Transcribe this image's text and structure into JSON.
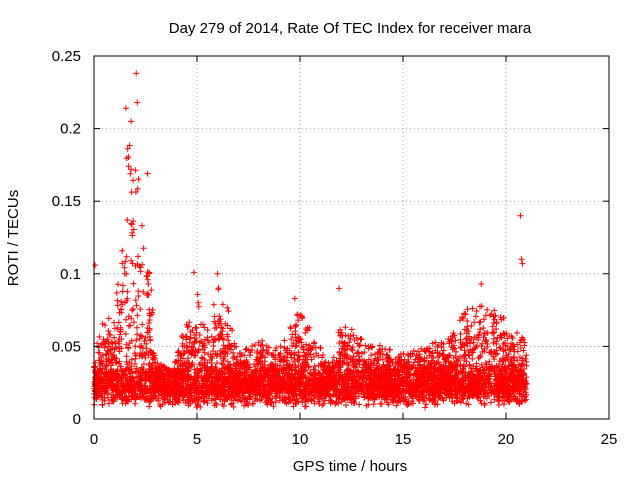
{
  "chart_data": {
    "type": "scatter",
    "title": "Day 279 of 2014, Rate Of TEC Index for receiver mara",
    "xlabel": "GPS time / hours",
    "ylabel": "ROTI / TECUs",
    "xlim": [
      0,
      25
    ],
    "ylim": [
      0,
      0.25
    ],
    "grid": true,
    "marker": "+",
    "marker_color": "#ff0000",
    "x_ticks": [
      0,
      5,
      10,
      15,
      20,
      25
    ],
    "x_tick_labels": [
      "0",
      "5",
      "10",
      "15",
      "20",
      "25"
    ],
    "y_ticks": [
      0,
      0.05,
      0.1,
      0.15,
      0.2,
      0.25
    ],
    "y_tick_labels": [
      "0",
      "0.05",
      "0.1",
      "0.15",
      "0.2",
      "0.25"
    ],
    "outliers": [
      {
        "x": 2.05,
        "y": 0.238
      },
      {
        "x": 2.1,
        "y": 0.218
      },
      {
        "x": 1.55,
        "y": 0.214
      },
      {
        "x": 1.8,
        "y": 0.205
      },
      {
        "x": 2.6,
        "y": 0.169
      },
      {
        "x": 0.05,
        "y": 0.106
      },
      {
        "x": 4.85,
        "y": 0.101
      },
      {
        "x": 6.0,
        "y": 0.1
      },
      {
        "x": 9.75,
        "y": 0.083
      },
      {
        "x": 11.9,
        "y": 0.09
      },
      {
        "x": 18.8,
        "y": 0.093
      },
      {
        "x": 20.7,
        "y": 0.14
      },
      {
        "x": 20.75,
        "y": 0.11
      },
      {
        "x": 20.8,
        "y": 0.107
      }
    ],
    "envelope": [
      {
        "x": 0.0,
        "y": 0.045
      },
      {
        "x": 0.5,
        "y": 0.07
      },
      {
        "x": 1.0,
        "y": 0.075
      },
      {
        "x": 1.3,
        "y": 0.11
      },
      {
        "x": 1.6,
        "y": 0.2
      },
      {
        "x": 1.8,
        "y": 0.215
      },
      {
        "x": 2.0,
        "y": 0.2
      },
      {
        "x": 2.3,
        "y": 0.14
      },
      {
        "x": 2.7,
        "y": 0.11
      },
      {
        "x": 3.0,
        "y": 0.04
      },
      {
        "x": 3.8,
        "y": 0.032
      },
      {
        "x": 4.5,
        "y": 0.07
      },
      {
        "x": 5.0,
        "y": 0.09
      },
      {
        "x": 5.5,
        "y": 0.06
      },
      {
        "x": 6.0,
        "y": 0.095
      },
      {
        "x": 6.5,
        "y": 0.08
      },
      {
        "x": 7.0,
        "y": 0.045
      },
      {
        "x": 8.0,
        "y": 0.055
      },
      {
        "x": 9.0,
        "y": 0.05
      },
      {
        "x": 10.0,
        "y": 0.075
      },
      {
        "x": 11.0,
        "y": 0.05
      },
      {
        "x": 11.5,
        "y": 0.035
      },
      {
        "x": 12.0,
        "y": 0.07
      },
      {
        "x": 13.0,
        "y": 0.055
      },
      {
        "x": 14.0,
        "y": 0.05
      },
      {
        "x": 15.0,
        "y": 0.045
      },
      {
        "x": 16.0,
        "y": 0.05
      },
      {
        "x": 17.0,
        "y": 0.055
      },
      {
        "x": 18.0,
        "y": 0.075
      },
      {
        "x": 19.0,
        "y": 0.08
      },
      {
        "x": 20.0,
        "y": 0.07
      },
      {
        "x": 21.0,
        "y": 0.055
      }
    ],
    "data_x_range": [
      0,
      21
    ]
  }
}
